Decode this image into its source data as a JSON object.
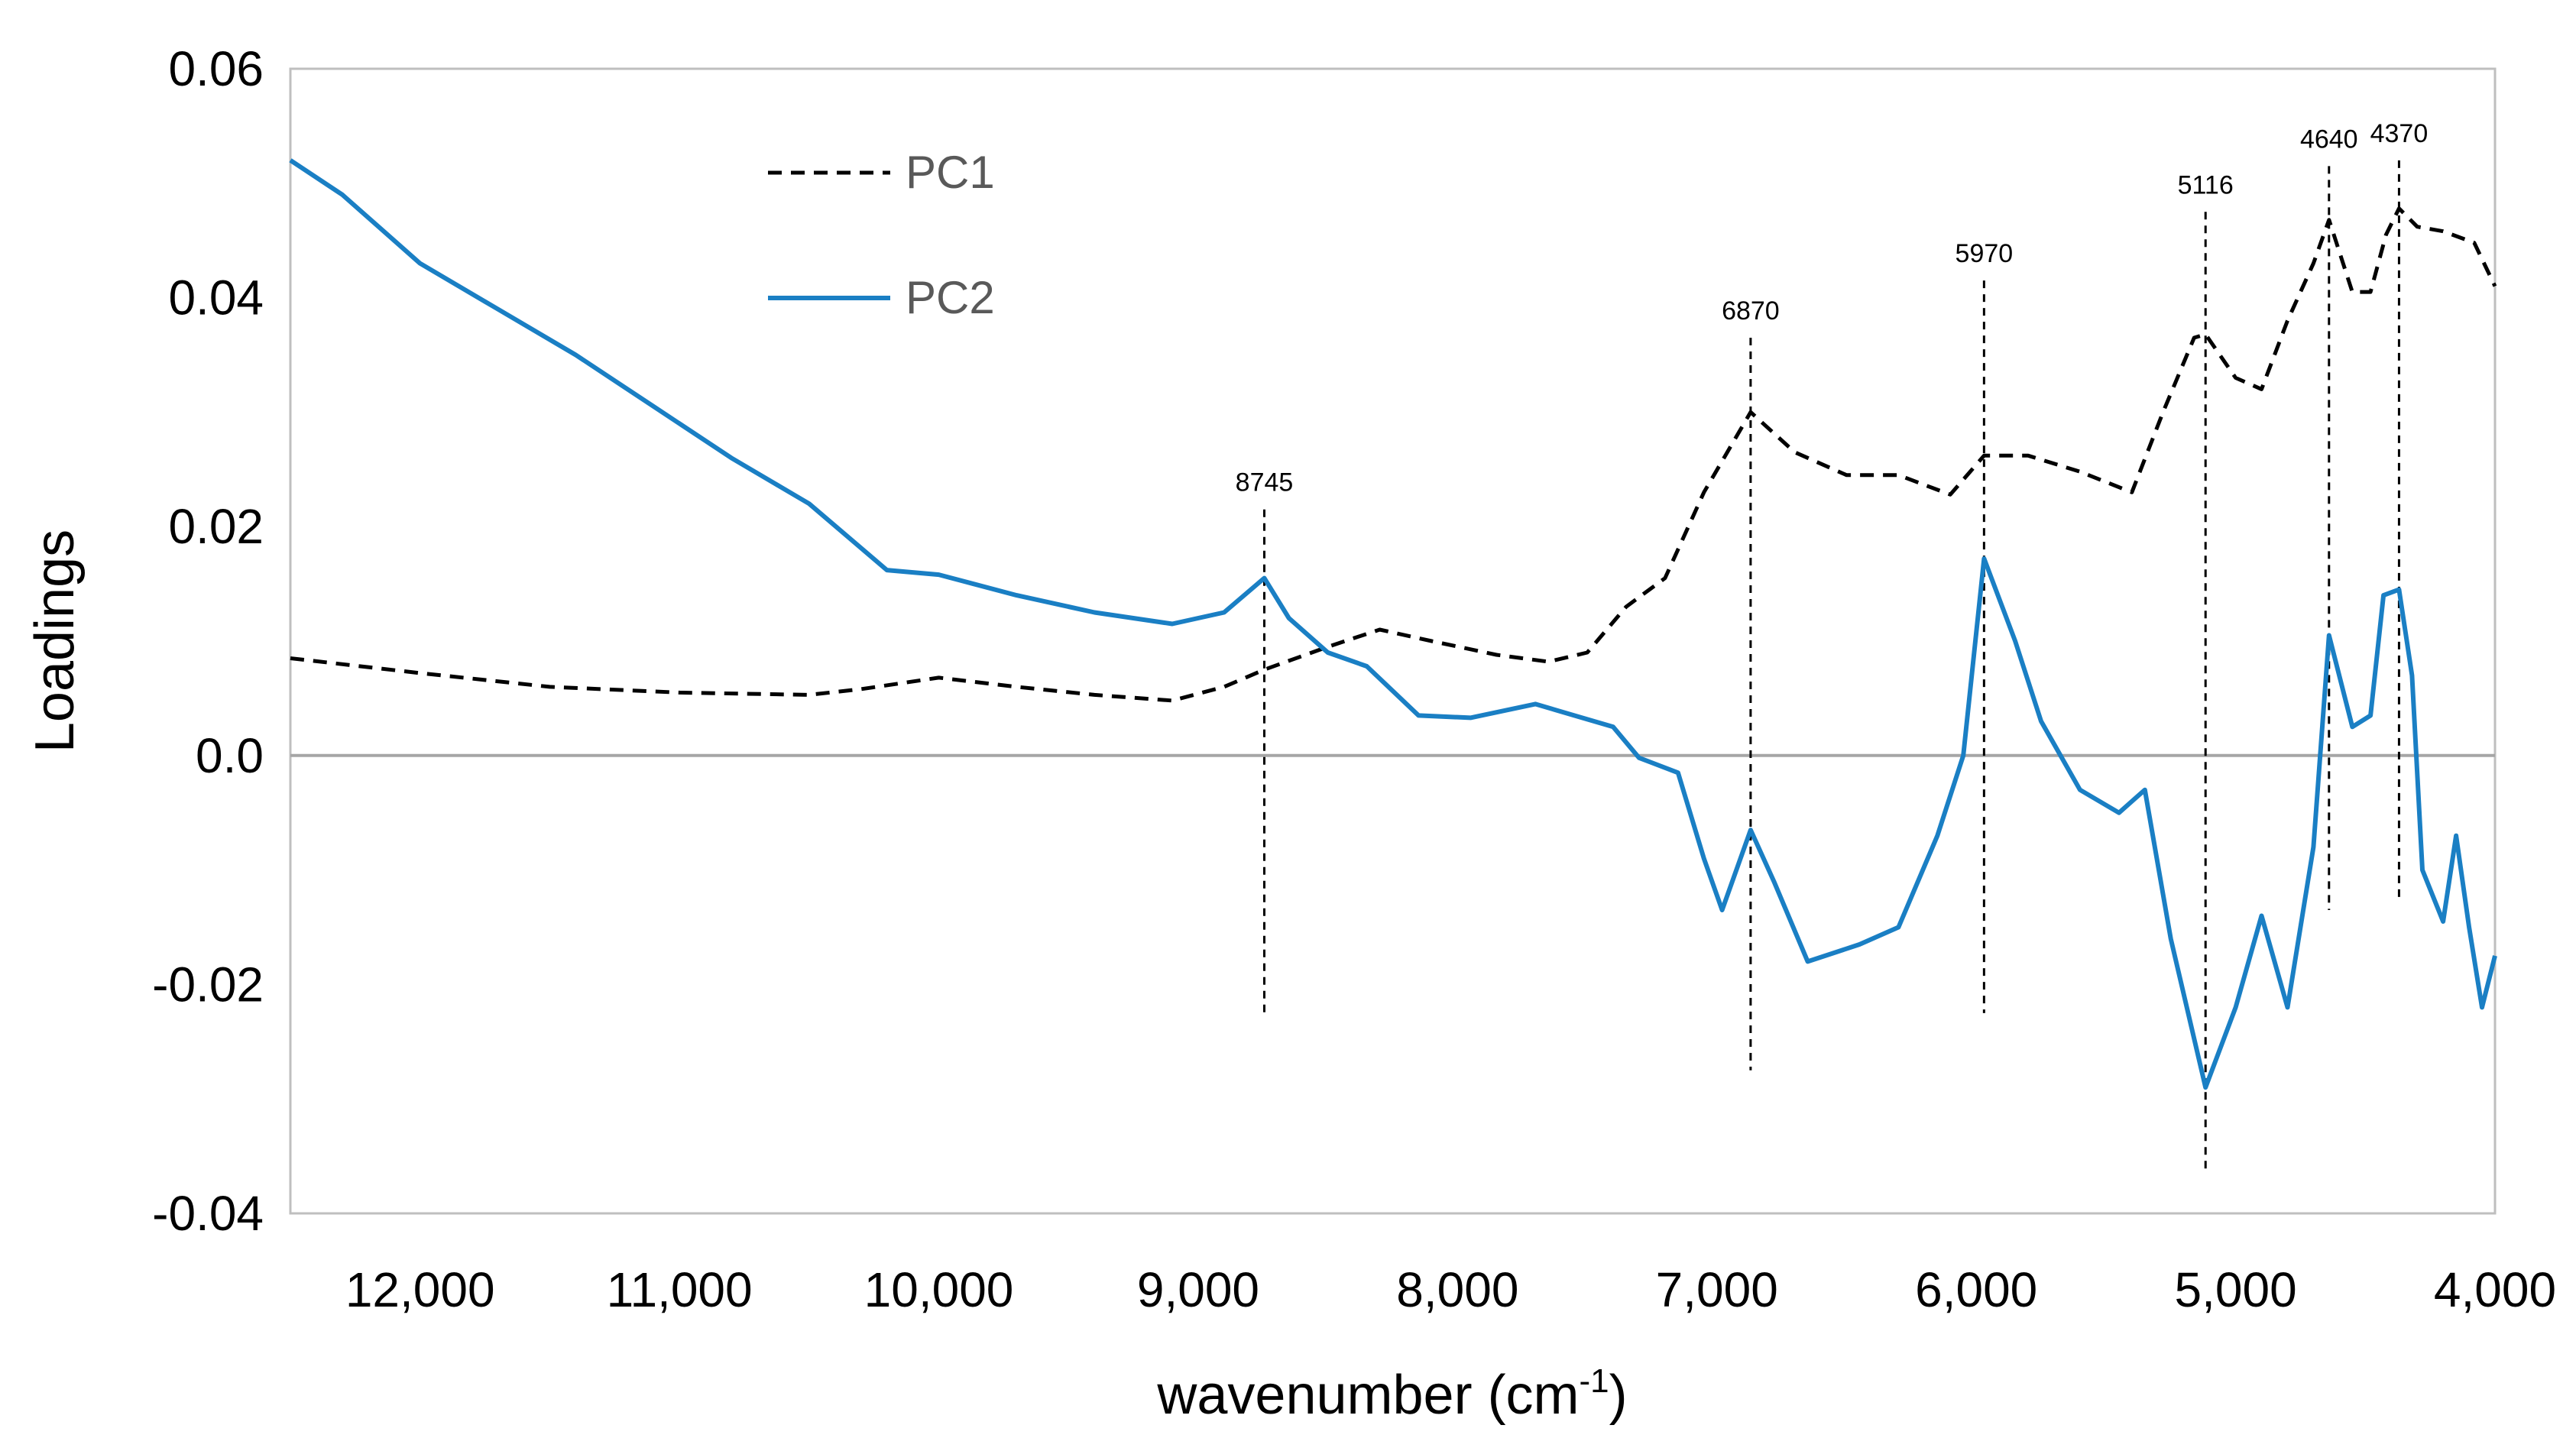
{
  "chart_data": {
    "type": "line",
    "title": "",
    "xlabel": "wavenumber (cm",
    "xlabel_sup": "-1",
    "xlabel_close": ")",
    "ylabel": "Loadings",
    "xlim": [
      12500,
      4000
    ],
    "ylim": [
      -0.04,
      0.06
    ],
    "x_reversed": true,
    "x_ticks": [
      12000,
      11000,
      10000,
      9000,
      8000,
      7000,
      6000,
      5000,
      4000
    ],
    "x_tick_labels": [
      "12,000",
      "11,000",
      "10,000",
      "9,000",
      "8,000",
      "7,000",
      "6,000",
      "5,000",
      "4,000"
    ],
    "y_ticks": [
      0.06,
      0.04,
      0.02,
      0.0,
      -0.02,
      -0.04
    ],
    "y_tick_labels": [
      "0.06",
      "0.04",
      "0.02",
      "0.0",
      "-0.02",
      "-0.04"
    ],
    "zero_line": true,
    "legend_position": "top-left",
    "series": [
      {
        "name": "PC1",
        "style": "dashed",
        "color": "#000000",
        "points": [
          [
            12500,
            0.0085
          ],
          [
            12000,
            0.0072
          ],
          [
            11500,
            0.006
          ],
          [
            11000,
            0.0055
          ],
          [
            10500,
            0.0053
          ],
          [
            10300,
            0.0058
          ],
          [
            10000,
            0.0068
          ],
          [
            9700,
            0.006
          ],
          [
            9400,
            0.0053
          ],
          [
            9100,
            0.0048
          ],
          [
            8900,
            0.006
          ],
          [
            8745,
            0.0075
          ],
          [
            8500,
            0.0095
          ],
          [
            8300,
            0.011
          ],
          [
            8100,
            0.01
          ],
          [
            7850,
            0.0088
          ],
          [
            7650,
            0.0082
          ],
          [
            7500,
            0.009
          ],
          [
            7350,
            0.013
          ],
          [
            7200,
            0.0155
          ],
          [
            7050,
            0.023
          ],
          [
            6870,
            0.03
          ],
          [
            6700,
            0.0265
          ],
          [
            6500,
            0.0245
          ],
          [
            6300,
            0.0245
          ],
          [
            6100,
            0.0228
          ],
          [
            5970,
            0.0262
          ],
          [
            5800,
            0.0262
          ],
          [
            5600,
            0.0248
          ],
          [
            5400,
            0.023
          ],
          [
            5280,
            0.03
          ],
          [
            5160,
            0.0365
          ],
          [
            5116,
            0.0368
          ],
          [
            5000,
            0.033
          ],
          [
            4900,
            0.032
          ],
          [
            4800,
            0.038
          ],
          [
            4700,
            0.043
          ],
          [
            4640,
            0.0468
          ],
          [
            4550,
            0.0405
          ],
          [
            4480,
            0.0405
          ],
          [
            4420,
            0.0455
          ],
          [
            4370,
            0.0478
          ],
          [
            4300,
            0.0462
          ],
          [
            4200,
            0.0458
          ],
          [
            4080,
            0.0448
          ],
          [
            4000,
            0.041
          ]
        ]
      },
      {
        "name": "PC2",
        "style": "solid",
        "color": "#1a7fc4",
        "points": [
          [
            12500,
            0.052
          ],
          [
            12300,
            0.049
          ],
          [
            12000,
            0.043
          ],
          [
            11700,
            0.039
          ],
          [
            11400,
            0.035
          ],
          [
            11100,
            0.0305
          ],
          [
            10800,
            0.026
          ],
          [
            10500,
            0.022
          ],
          [
            10200,
            0.0162
          ],
          [
            10000,
            0.0158
          ],
          [
            9700,
            0.014
          ],
          [
            9400,
            0.0125
          ],
          [
            9100,
            0.0115
          ],
          [
            8900,
            0.0125
          ],
          [
            8745,
            0.0155
          ],
          [
            8650,
            0.012
          ],
          [
            8500,
            0.009
          ],
          [
            8350,
            0.0078
          ],
          [
            8150,
            0.0035
          ],
          [
            7950,
            0.0033
          ],
          [
            7700,
            0.0045
          ],
          [
            7550,
            0.0035
          ],
          [
            7400,
            0.0025
          ],
          [
            7300,
            -0.0002
          ],
          [
            7150,
            -0.0015
          ],
          [
            7050,
            -0.009
          ],
          [
            6980,
            -0.0135
          ],
          [
            6870,
            -0.0065
          ],
          [
            6780,
            -0.011
          ],
          [
            6650,
            -0.018
          ],
          [
            6450,
            -0.0165
          ],
          [
            6300,
            -0.015
          ],
          [
            6150,
            -0.007
          ],
          [
            6050,
            0.0
          ],
          [
            5970,
            0.0172
          ],
          [
            5850,
            0.01
          ],
          [
            5750,
            0.003
          ],
          [
            5600,
            -0.003
          ],
          [
            5450,
            -0.005
          ],
          [
            5350,
            -0.003
          ],
          [
            5250,
            -0.016
          ],
          [
            5116,
            -0.029
          ],
          [
            5000,
            -0.022
          ],
          [
            4900,
            -0.014
          ],
          [
            4800,
            -0.022
          ],
          [
            4700,
            -0.008
          ],
          [
            4640,
            0.0105
          ],
          [
            4550,
            0.0025
          ],
          [
            4480,
            0.0035
          ],
          [
            4430,
            0.014
          ],
          [
            4370,
            0.0145
          ],
          [
            4320,
            0.007
          ],
          [
            4280,
            -0.01
          ],
          [
            4200,
            -0.0145
          ],
          [
            4150,
            -0.007
          ],
          [
            4100,
            -0.015
          ],
          [
            4050,
            -0.022
          ],
          [
            4000,
            -0.0175
          ]
        ]
      }
    ],
    "annotations": [
      {
        "x": 8745,
        "label": "8745",
        "y_top": 0.0215,
        "y_bottom": -0.0225
      },
      {
        "x": 6870,
        "label": "6870",
        "y_top": 0.0365,
        "y_bottom": -0.0275
      },
      {
        "x": 5970,
        "label": "5970",
        "y_top": 0.0415,
        "y_bottom": -0.0225
      },
      {
        "x": 5116,
        "label": "5116",
        "y_top": 0.0475,
        "y_bottom": -0.0365
      },
      {
        "x": 4640,
        "label": "4640",
        "y_top": 0.0515,
        "y_bottom": -0.0135
      },
      {
        "x": 4370,
        "label": "4370",
        "y_top": 0.052,
        "y_bottom": -0.0125
      }
    ]
  }
}
